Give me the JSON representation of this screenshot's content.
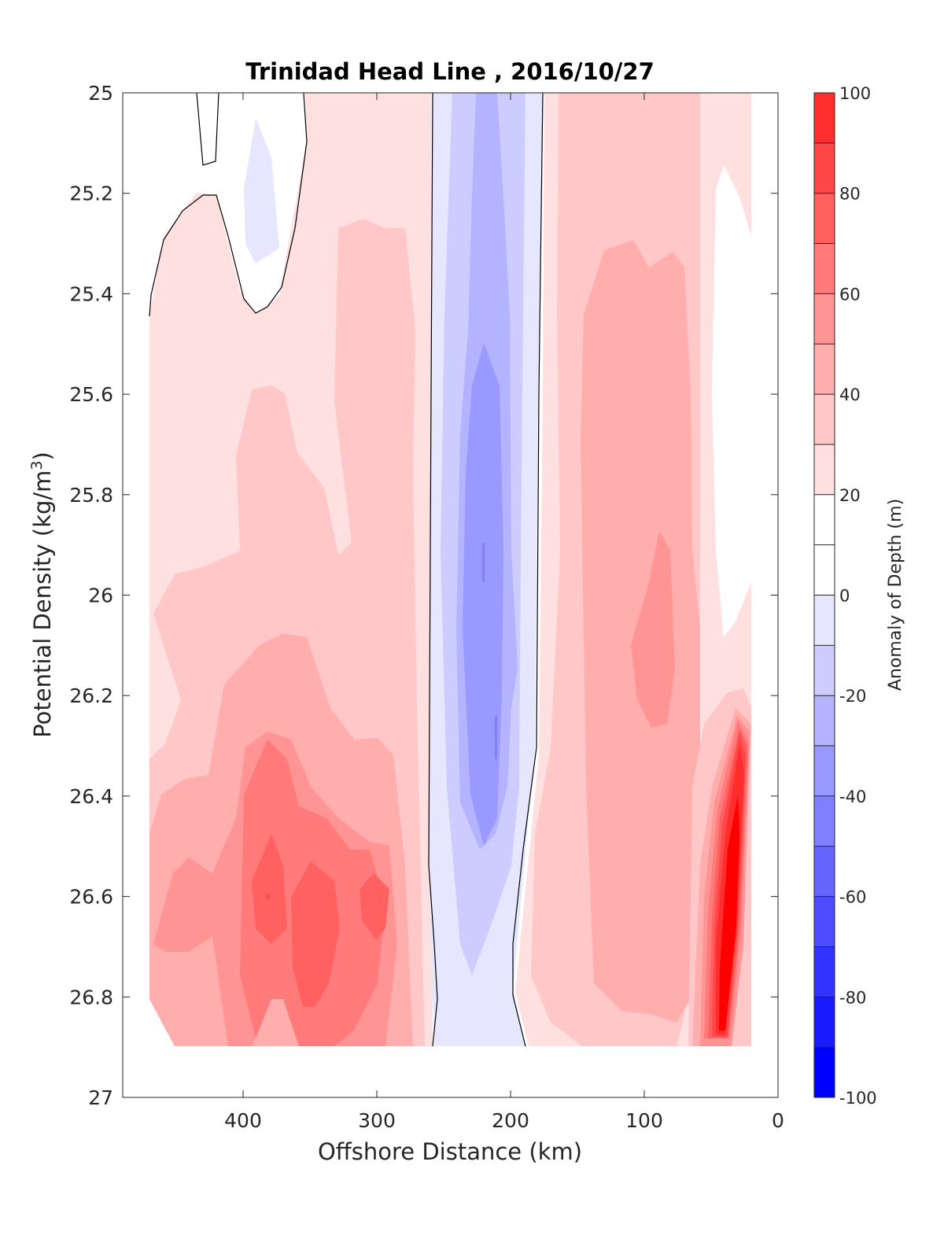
{
  "chart_data": {
    "type": "contour",
    "title": "Trinidad Head Line , 2016/10/27",
    "xlabel": "Offshore Distance (km)",
    "ylabel": "Potential Density (kg/m",
    "ylabel_superscript": "3",
    "ylabel_suffix": ")",
    "colorbar_label": "Anomaly of Depth (m)",
    "x_reversed": true,
    "y_reversed": true,
    "xlim": [
      490,
      0
    ],
    "ylim": [
      25,
      27
    ],
    "x_ticks": [
      400,
      300,
      200,
      100,
      0
    ],
    "x_tick_labels": [
      "400",
      "300",
      "200",
      "100",
      "0"
    ],
    "y_ticks": [
      25,
      25.2,
      25.4,
      25.6,
      25.8,
      26,
      26.2,
      26.4,
      26.6,
      26.8,
      27
    ],
    "y_tick_labels": [
      "25",
      "25.2",
      "25.4",
      "25.6",
      "25.8",
      "26",
      "26.2",
      "26.4",
      "26.6",
      "26.8",
      "27"
    ],
    "colorbar_range": [
      -100,
      100
    ],
    "colorbar_ticks": [
      100,
      80,
      60,
      40,
      20,
      0,
      -20,
      -40,
      -60,
      -80,
      -100
    ],
    "colorbar_tick_labels": [
      "100",
      "80",
      "60",
      "40",
      "20",
      "0",
      "-20",
      "-40",
      "-60",
      "-80",
      "-100"
    ],
    "colorbar_levels": [
      -100,
      -90,
      -80,
      -70,
      -60,
      -50,
      -40,
      -30,
      -20,
      -10,
      0,
      10,
      20,
      30,
      40,
      50,
      60,
      70,
      80,
      90,
      100
    ],
    "colormap": [
      "#0000ff",
      "#1a1aff",
      "#3333ff",
      "#4d4dff",
      "#6666ff",
      "#8080ff",
      "#9999ff",
      "#b3b3ff",
      "#ccccff",
      "#e6e6ff",
      "#ffffff",
      "#ffffff",
      "#ffe0e0",
      "#ffc7c7",
      "#ffadad",
      "#ff9494",
      "#ff7a7a",
      "#ff6161",
      "#ff4747",
      "#ff2e2e",
      "#ff0000"
    ],
    "grid": false,
    "legend": "colorbar-right",
    "zero_contour_drawn": true
  }
}
